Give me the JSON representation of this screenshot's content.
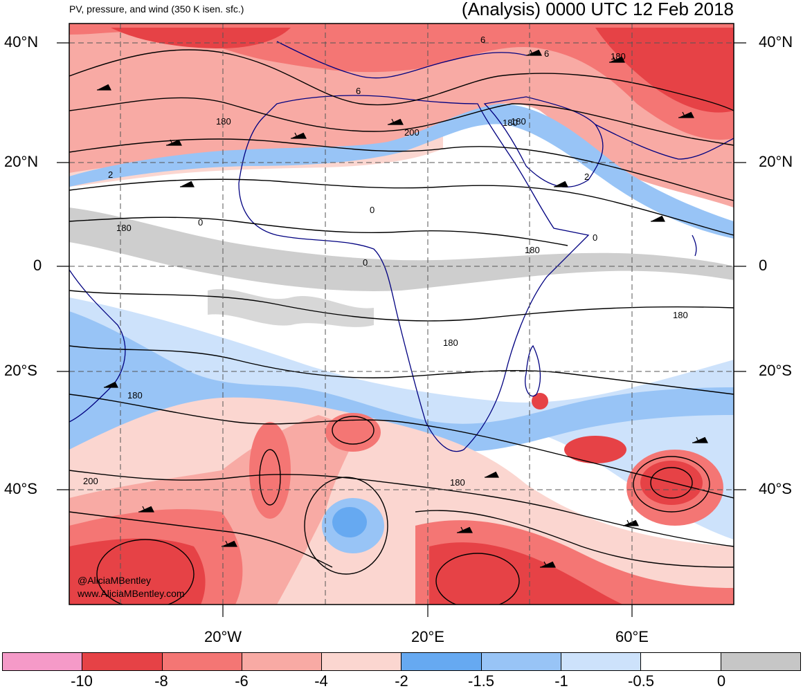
{
  "title_left": "PV, pressure, and wind (350 K isen. sfc.)",
  "title_right": "(Analysis) 0000 UTC 12 Feb 2018",
  "lat_labels": [
    "40°N",
    "20°N",
    "0",
    "20°S",
    "40°S"
  ],
  "lon_labels": [
    "20°W",
    "20°E",
    "60°E"
  ],
  "contour_labels": [
    "6",
    "6",
    "6",
    "180",
    "180",
    "200",
    "2",
    "180",
    "0",
    "0",
    "0",
    "180",
    "0",
    "180",
    "180",
    "2",
    "180",
    "180",
    "180",
    "200",
    "180"
  ],
  "credit": [
    "@AliciaMBentley",
    "www.AliciaMBentley.com"
  ],
  "colorbar": {
    "colors": [
      "#f59ac8",
      "#e64246",
      "#f47674",
      "#f8aaa4",
      "#fbd6d0",
      "#66a9f1",
      "#98c4f6",
      "#cde2fb",
      "#ffffff",
      "#c6c6c6"
    ],
    "tick_labels": [
      "-10",
      "-8",
      "-6",
      "-4",
      "-2",
      "-1.5",
      "-1",
      "-0.5",
      "0"
    ]
  }
}
